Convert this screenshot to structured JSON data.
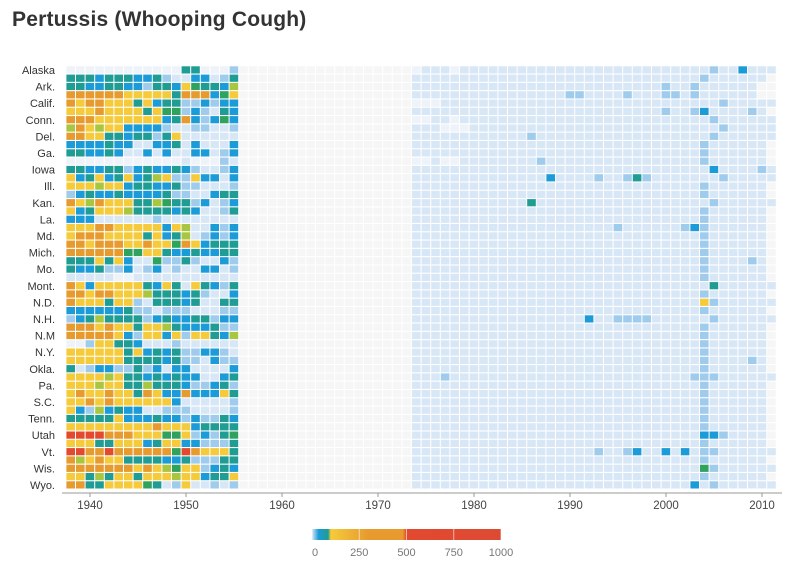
{
  "chart_data": {
    "type": "heatmap",
    "title": "Pertussis (Whooping Cough)",
    "x_range": [
      1938,
      2011
    ],
    "x_ticks": [
      1940,
      1950,
      1960,
      1970,
      1980,
      1990,
      2000,
      2010
    ],
    "row_labels": [
      "Alaska",
      "",
      "Ark.",
      "",
      "Calif.",
      "",
      "Conn.",
      "",
      "Del.",
      "",
      "Ga.",
      "",
      "Iowa",
      "",
      "Ill.",
      "",
      "Kan.",
      "",
      "La.",
      "",
      "Md.",
      "",
      "Mich.",
      "",
      "Mo.",
      "",
      "Mont.",
      "",
      "N.D.",
      "",
      "N.H.",
      "",
      "N.M",
      "",
      "N.Y.",
      "",
      "Okla.",
      "",
      "Pa.",
      "",
      "S.C.",
      "",
      "Tenn.",
      "",
      "Utah",
      "",
      "Vt.",
      "",
      "Wis.",
      "",
      "Wyo."
    ],
    "value_encoding": "one character per year from 1938 to 2011; '-' = no data",
    "level_values": {
      "w": 2,
      "l": 10,
      "b": 30,
      "B": 55,
      "t": 75,
      "g": 100,
      "G": 130,
      "y": 200,
      "o": 320,
      "r": 600
    },
    "level_colors": {
      "-": "#f6f6f6",
      "w": "#edf3f9",
      "l": "#d8e7f5",
      "b": "#9fcbec",
      "B": "#1b9bd7",
      "t": "#1f9c93",
      "g": "#2fa35e",
      "G": "#a9c640",
      "y": "#f6cb3b",
      "o": "#e79a2e",
      "r": "#e2492f"
    },
    "rows": [
      "wwwwwwwwwwwwttwwwb------------------wlllwllllllllllllllllllllllllllbllBlll",
      "tttBtttBBtbllBBlbt------------------llllllllllllllllllllllllllllllbllllll",
      "ttBBttBBbttBygttBG------------------llllllllllllllllllllllllllbllbllllll",
      "ooooooyyyyytoooBgy------------------llllllllllllllllbbllllblllbblbllllll",
      "oyooyyytyBttbbBbBB------------------wwwlllllllllllllllllllllllllllllbllllll",
      "yyyoyyyytyggbBbltB------------------llllllllllllllllllllllllllbllbBllllbl",
      "oooyyyyyyyBtoBbBgB------------------wwllwllllllllllllllllllllllllllbllllll",
      "GoyGyyBBBBbllbbllb------------------lllwwwllllllllllllllllllllllllllbllllll",
      "ooyyttBttbtyllllll------------------llllllllllllbllllllllllllllllllbllllll",
      "BBBBtBBllBBtlBlllB------------------llllllllllllllllllllllllllllllbllllll",
      "ttBBtBllBlBllBBlbB------------------llllllllllllllllllllllllllllllbllllll",
      "wwwwwwwwwwwwlwwwbl------------------wwlwwllllllllbllllllllllllllllbllllll",
      "ttBBttbBtBBtBbllbB------------------lllllllllllllllllllllllllllllllBllllbl",
      "yBtyBtyBtGybbyBBlB------------------llllllllllllllBllllbllbtblllllllbllllll",
      "yyyGyyBttBBtbblllb------------------llllllllllllllllllllllllllllllbllllll",
      "bBtBBtBBBBtbbllBtt------------------llllllllllllllllllllllllllllllbllllll",
      "oyGoyyyttGgttbBlbB------------------lllllllllllltllllllllllllllllllbllllll",
      "yBtyyyGttttBtBllbt------------------llllllllllllllllllllllllllllllbllllll",
      "BBBllllllbllllllll------------------llllllllllllllllllllllllllllllbllllll",
      "yyyooyyyyyByGllBbB------------------lllllllllllllllllllllbllllllbBbllllll",
      "yoooyyyytyBtGlbBbB------------------llllllllllllllllllllllllllllllbllllll",
      "ooyoooyyoyygoyBttt------------------llllllllllllllllllllllllllllllbllllll",
      "ooooooggyytBBtBBtt------------------llllllllllllllllllllllllllllllbllllll",
      "tttytyBllgbbtbllBb------------------llllllllllllllllllllllllllllllbllllbl",
      "tBBtbbBlbBlbllBBlb------------------llllllllllllllllllllllllllllllbllllll",
      "lllllwwlllllllllll------------------llllllllllllllllllllllllllllllbllllll",
      "oyByyyyytBytlytBbt------------------llllllllllllllllllllllllllllllltllllll",
      "ooyooyyyGtttBtbllB------------------llllllllllllllllllllllllllllllbllllll",
      "oyyytyybltttBtlltt------------------llllllllllllllllllllllllllllllybllllll",
      "BBBBBBtbblbbblllbb------------------llllllllllllllllllllllllllllllbllllll",
      "bBtGttttbBtBBttbBB------------------llllllllllllllllllBllbbbbllllllbllllll",
      "oooyoyytyyGtBBBtbb------------------llllllllllllllllllllllllllllllbllllll",
      "oooooyBbyyBybyytBG------------------llllllllllllllllllllllllllllllbllllll",
      "wwbyyttBlllbllllll------------------llllllllllllllllllllllllllllllbllllll",
      "yyyyyytyBtBtbbBBbl------------------llllllllllllllllllllllllllllllbllllll",
      "yyyyyyttttBtbblBbb------------------llllllllllllllllllllllllllllllbllllbl",
      "tlbBBbbtbBlBBllllB------------------llllllllllllllllllllllllllllllbllllll",
      "yyyyGyttBtBtBBllBt------------------lllblllllllllllllllllllllllllbbbllllll",
      "yyyGyyttGtttBbbBtb------------------llllllllllllllllllllllllllllllbllllll",
      "yoyyoyytoyBBoBBByt------------------llllllllllllllllllllllllllllllbllllll",
      "yyoyoyyyyyyBlllllb------------------llllllllllllllllllllllllllllllbllllll",
      "yBbGBtBBllbbbllllb------------------llllllllllllllllllllllllllllllbllllll",
      "tttttyBBBtBBbBbbtB------------------llllllllllllllllllllllllllllllbllllll",
      "yyyyyyyyyoyyyBtttt------------------llllllllllllllllllllllllllllllbllllll",
      "rrrroooyyyggybBbtg------------------llllllllllllllllllllllllllllllBBbllll",
      "yyyttyyyBtyyBBbbbt------------------llllllllllllllllllllllllllllllbllllll",
      "rrooroooooogroyyyt------------------lllllllllllllllllllbllbBllBlBlbbllllll",
      "oGyoyyttttBBtbbbtt------------------llllllllllllllllllllllllllllllbllllll",
      "oooooooyoyGgyybBtB------------------llllllllllllllllllllllllllllllgbllllll",
      "yytGtyytyyyGyyBtty------------------llllllllllllllllllllllllllllllbllllll",
      "oottyyyygtlbyllblb------------------lllllllllllllllllllllllllllllBlbllllll"
    ],
    "colorbar": {
      "ticks": [
        0,
        250,
        500,
        750,
        1000
      ],
      "range": [
        0,
        1000
      ],
      "stops": [
        "#d8e7f5",
        "#1b9bd7",
        "#1f9c93",
        "#f6cb3b",
        "#e79a2e",
        "#e2492f"
      ]
    }
  }
}
